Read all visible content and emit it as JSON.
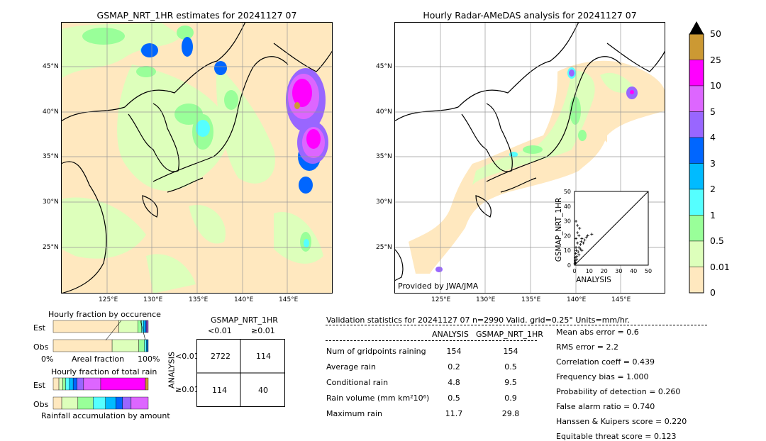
{
  "maps": {
    "left_title": "GSMAP_NRT_1HR estimates for 20241127 07",
    "right_title": "Hourly Radar-AMeDAS analysis for 20241127 07",
    "lat_labels": [
      "45°N",
      "40°N",
      "35°N",
      "30°N",
      "25°N"
    ],
    "lon_labels": [
      "125°E",
      "130°E",
      "135°E",
      "140°E",
      "145°E"
    ],
    "credit": "Provided by JWA/JMA"
  },
  "colorbar": {
    "labels": [
      "50",
      "25",
      "10",
      "5",
      "4",
      "3",
      "2",
      "1",
      "0.5",
      "0.01",
      "0"
    ],
    "colors": [
      "#cc9933",
      "#ff00ff",
      "#dd66ff",
      "#9966ff",
      "#0066ff",
      "#00bbff",
      "#55ffff",
      "#99ff99",
      "#ddffbb",
      "#ffe8bf"
    ],
    "over_color": "#000000"
  },
  "scatter": {
    "xlabel": "ANALYSIS",
    "ylabel": "GSMAP_NRT_1HR",
    "ticks": [
      "0",
      "10",
      "20",
      "30",
      "40",
      "50"
    ]
  },
  "occurrence": {
    "title": "Hourly fraction by occurence",
    "row_est": "Est",
    "row_obs": "Obs",
    "axis_left": "0%",
    "axis_mid": "Areal fraction",
    "axis_right": "100%"
  },
  "total_rain": {
    "title": "Hourly fraction of total rain",
    "row_est": "Est",
    "row_obs": "Obs",
    "footer": "Rainfall accumulation by amount"
  },
  "contingency": {
    "title": "GSMAP_NRT_1HR",
    "col_lt": "<0.01",
    "col_ge": "≥0.01",
    "row_label": "ANALYSIS",
    "row_lt": "<0.01",
    "row_ge": "≥0.01",
    "a": "2722",
    "b": "114",
    "c": "114",
    "d": "40"
  },
  "validation": {
    "header": "Validation statistics for 20241127 07  n=2990 Valid. grid=0.25° Units=mm/hr.",
    "col_analysis": "ANALYSIS",
    "col_gsmap": "GSMAP_NRT_1HR",
    "rows": [
      {
        "label": "Num of gridpoints raining",
        "analysis": "154",
        "gsmap": "154"
      },
      {
        "label": "Average rain",
        "analysis": "0.2",
        "gsmap": "0.5"
      },
      {
        "label": "Conditional rain",
        "analysis": "4.8",
        "gsmap": "9.5"
      },
      {
        "label": "Rain volume (mm km²10⁶)",
        "analysis": "0.5",
        "gsmap": "0.9"
      },
      {
        "label": "Maximum rain",
        "analysis": "11.7",
        "gsmap": "29.8"
      }
    ],
    "scores": [
      "Mean abs error =    0.6",
      "RMS error =    2.2",
      "Correlation coeff =  0.439",
      "Frequency bias =  1.000",
      "Probability of detection =  0.260",
      "False alarm ratio =  0.740",
      "Hanssen & Kuipers score =  0.220",
      "Equitable threat score =  0.123"
    ]
  },
  "chart_data": {
    "type": "scatter",
    "x": [
      0.5,
      0.5,
      0.8,
      1,
      1,
      1.2,
      1.5,
      2,
      2,
      2.5,
      3,
      3,
      3.5,
      4,
      4.5,
      5,
      5,
      6,
      7,
      8,
      9,
      1,
      2,
      0.5,
      1.5,
      3,
      4,
      0.3,
      0.7,
      11.7
    ],
    "y": [
      2,
      5,
      8,
      12,
      18,
      10,
      6,
      15,
      22,
      9,
      12,
      20,
      25,
      14,
      16,
      10,
      18,
      15,
      17,
      19,
      20,
      29.8,
      27,
      3,
      4,
      7,
      11,
      1,
      1.5,
      21
    ],
    "xlabel": "ANALYSIS",
    "ylabel": "GSMAP_NRT_1HR",
    "xlim": [
      0,
      50
    ],
    "ylim": [
      0,
      50
    ],
    "occurrence_fractions": {
      "est": [
        0.69,
        0.2,
        0.04,
        0.02,
        0.02,
        0.01,
        0.01,
        0.01
      ],
      "obs": [
        0.62,
        0.28,
        0.06,
        0.02,
        0.01,
        0.01
      ]
    },
    "total_rain_fractions": {
      "est": [
        0.06,
        0.04,
        0.03,
        0.04,
        0.04,
        0.04,
        0.07,
        0.18,
        0.47,
        0.03
      ],
      "obs": [
        0.09,
        0.17,
        0.16,
        0.13,
        0.11,
        0.07,
        0.09,
        0.18
      ]
    }
  }
}
